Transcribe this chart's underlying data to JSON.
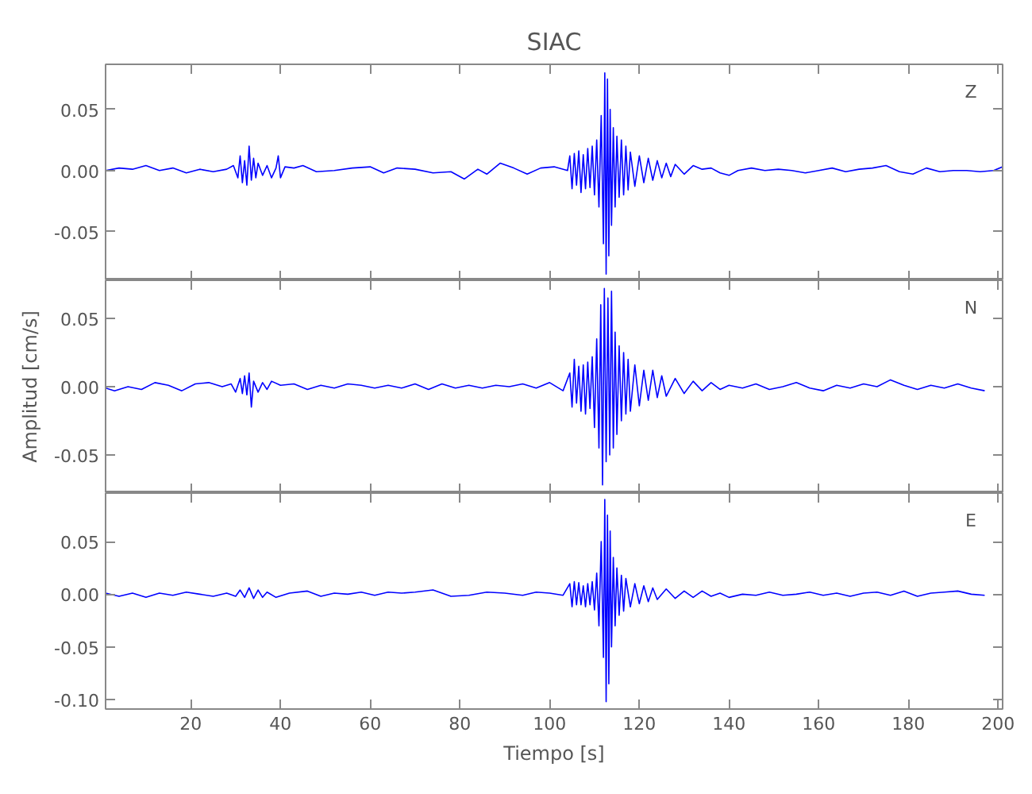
{
  "chart_data": [
    {
      "type": "line",
      "title": "SIAC",
      "annotations": [
        "Z"
      ],
      "xlim": [
        1,
        201
      ],
      "xticks": [
        20,
        40,
        60,
        80,
        100,
        120,
        140,
        160,
        180,
        200
      ],
      "ylim": [
        -0.09,
        0.087
      ],
      "yticks": [
        {
          "value": -0.05,
          "label": "-0.05"
        },
        {
          "value": 0,
          "label": "0.00"
        },
        {
          "value": 0.05,
          "label": "0.05"
        }
      ],
      "tick_labels": "y",
      "series": [
        {
          "color": "#0000ff",
          "x": [
            1,
            4,
            7,
            10,
            13,
            16,
            19,
            22,
            25,
            28,
            29.5,
            30.5,
            31,
            31.5,
            32,
            32.5,
            33,
            33.5,
            34,
            34.5,
            35,
            36,
            37,
            38,
            39,
            39.5,
            40,
            41,
            43,
            45,
            48,
            52,
            56,
            60,
            63,
            66,
            70,
            74,
            78,
            81,
            84,
            86,
            89,
            92,
            95,
            98,
            101,
            104,
            104.5,
            105,
            105.5,
            106,
            106.5,
            107,
            107.5,
            108,
            108.5,
            109,
            109.5,
            110,
            110.5,
            111,
            111.5,
            112,
            112.3,
            112.6,
            112.9,
            113.2,
            113.5,
            113.8,
            114.2,
            114.6,
            115,
            115.5,
            116,
            116.5,
            117,
            117.5,
            118,
            119,
            120,
            121,
            122,
            123,
            124,
            125,
            126,
            127,
            128,
            130,
            132,
            134,
            136,
            138,
            140,
            142,
            145,
            148,
            151,
            154,
            157,
            160,
            163,
            166,
            169,
            172,
            175,
            178,
            181,
            184,
            187,
            190,
            193,
            196,
            199,
            201
          ],
          "values": [
            0.0,
            0.002,
            0.001,
            0.004,
            0.0,
            0.002,
            -0.002,
            0.001,
            -0.001,
            0.001,
            0.004,
            -0.006,
            0.012,
            -0.01,
            0.008,
            -0.012,
            0.02,
            -0.008,
            0.01,
            -0.006,
            0.006,
            -0.004,
            0.004,
            -0.006,
            0.002,
            0.012,
            -0.006,
            0.003,
            0.002,
            0.004,
            -0.001,
            0.0,
            0.002,
            0.003,
            -0.002,
            0.002,
            0.001,
            -0.002,
            -0.001,
            -0.007,
            0.001,
            -0.003,
            0.006,
            0.002,
            -0.003,
            0.002,
            0.003,
            0.0,
            0.012,
            -0.015,
            0.014,
            -0.012,
            0.016,
            -0.018,
            0.013,
            -0.015,
            0.018,
            -0.014,
            0.02,
            -0.02,
            0.025,
            -0.03,
            0.045,
            -0.06,
            0.08,
            -0.085,
            0.075,
            -0.07,
            0.05,
            -0.045,
            0.035,
            -0.03,
            0.028,
            -0.022,
            0.025,
            -0.02,
            0.02,
            -0.016,
            0.015,
            -0.013,
            0.012,
            -0.01,
            0.01,
            -0.008,
            0.008,
            -0.006,
            0.006,
            -0.005,
            0.005,
            -0.003,
            0.004,
            0.001,
            0.002,
            -0.002,
            -0.004,
            0.0,
            0.002,
            0.0,
            0.001,
            0.0,
            -0.002,
            0.0,
            0.002,
            -0.001,
            0.001,
            0.002,
            0.004,
            -0.001,
            -0.003,
            0.002,
            -0.001,
            0.0,
            0.0,
            -0.001,
            0.0,
            0.003
          ]
        }
      ]
    },
    {
      "type": "line",
      "ylabel": "Amplitud [cm/s]",
      "annotations": [
        "N"
      ],
      "xlim": [
        1,
        201
      ],
      "xticks": [
        20,
        40,
        60,
        80,
        100,
        120,
        140,
        160,
        180,
        200
      ],
      "ylim": [
        -0.078,
        0.078
      ],
      "yticks": [
        {
          "value": -0.05,
          "label": "-0.05"
        },
        {
          "value": 0,
          "label": "0.00"
        },
        {
          "value": 0.05,
          "label": "0.05"
        }
      ],
      "tick_labels": "y",
      "series": [
        {
          "color": "#0000ff",
          "x": [
            1,
            3,
            6,
            9,
            12,
            15,
            18,
            21,
            24,
            27,
            29,
            30,
            31,
            31.5,
            32,
            32.5,
            33,
            33.5,
            34,
            35,
            36,
            37,
            38,
            40,
            43,
            46,
            49,
            52,
            55,
            58,
            61,
            64,
            67,
            70,
            73,
            76,
            79,
            82,
            85,
            88,
            91,
            94,
            97,
            100,
            103,
            104.5,
            105,
            105.5,
            106,
            106.5,
            107,
            107.5,
            108,
            108.5,
            109,
            109.5,
            110,
            110.5,
            111,
            111.4,
            111.8,
            112.2,
            112.6,
            113,
            113.4,
            113.8,
            114.2,
            114.6,
            115,
            115.5,
            116,
            116.5,
            117,
            117.5,
            118,
            119,
            120,
            121,
            122,
            123,
            124,
            125,
            126,
            128,
            130,
            132,
            134,
            136,
            138,
            140,
            143,
            146,
            149,
            152,
            155,
            158,
            161,
            164,
            167,
            170,
            173,
            176,
            179,
            182,
            185,
            188,
            191,
            194,
            197
          ],
          "values": [
            -0.001,
            -0.003,
            0.0,
            -0.002,
            0.003,
            0.001,
            -0.003,
            0.002,
            0.003,
            0.0,
            0.002,
            -0.004,
            0.006,
            -0.005,
            0.008,
            -0.006,
            0.01,
            -0.015,
            0.004,
            -0.004,
            0.003,
            -0.002,
            0.004,
            0.001,
            0.002,
            -0.002,
            0.001,
            -0.001,
            0.002,
            0.001,
            -0.001,
            0.001,
            -0.001,
            0.002,
            -0.002,
            0.002,
            -0.001,
            0.001,
            -0.001,
            0.001,
            0.0,
            0.002,
            -0.001,
            0.003,
            -0.003,
            0.01,
            -0.015,
            0.02,
            -0.012,
            0.015,
            -0.018,
            0.016,
            -0.02,
            0.018,
            -0.016,
            0.022,
            -0.03,
            0.035,
            -0.045,
            0.06,
            -0.072,
            0.072,
            -0.055,
            0.065,
            -0.05,
            0.07,
            -0.045,
            0.04,
            -0.035,
            0.03,
            -0.025,
            0.025,
            -0.02,
            0.02,
            -0.018,
            0.016,
            -0.014,
            0.012,
            -0.01,
            0.012,
            -0.008,
            0.008,
            -0.007,
            0.006,
            -0.005,
            0.004,
            -0.003,
            0.003,
            -0.002,
            0.001,
            -0.001,
            0.002,
            -0.002,
            0.0,
            0.003,
            -0.001,
            -0.003,
            0.001,
            -0.001,
            0.002,
            0.0,
            0.005,
            0.001,
            -0.002,
            0.001,
            -0.001,
            0.002,
            -0.001,
            -0.003
          ]
        }
      ]
    },
    {
      "type": "line",
      "xlabel": "Tiempo [s]",
      "annotations": [
        "E"
      ],
      "xlim": [
        1,
        201
      ],
      "xticks": [
        20,
        40,
        60,
        80,
        100,
        120,
        140,
        160,
        180,
        200
      ],
      "ylim": [
        -0.109,
        0.096
      ],
      "yticks": [
        {
          "value": -0.1,
          "label": "-0.10"
        },
        {
          "value": -0.05,
          "label": "-0.05"
        },
        {
          "value": 0,
          "label": "0.00"
        },
        {
          "value": 0.05,
          "label": "0.05"
        }
      ],
      "series": [
        {
          "color": "#0000ff",
          "x": [
            1,
            4,
            7,
            10,
            13,
            16,
            19,
            22,
            25,
            28,
            30,
            31,
            32,
            33,
            34,
            35,
            36,
            37,
            39,
            42,
            46,
            49,
            52,
            55,
            58,
            61,
            64,
            67,
            70,
            74,
            78,
            82,
            86,
            90,
            94,
            97,
            100,
            103,
            104.5,
            105,
            105.5,
            106,
            106.5,
            107,
            107.5,
            108,
            108.5,
            109,
            109.5,
            110,
            110.5,
            111,
            111.5,
            112,
            112.3,
            112.6,
            112.9,
            113.2,
            113.5,
            113.8,
            114.2,
            114.6,
            115,
            115.5,
            116,
            116.5,
            117,
            118,
            119,
            120,
            121,
            122,
            123,
            124,
            126,
            128,
            130,
            132,
            134,
            136,
            138,
            140,
            143,
            146,
            149,
            152,
            155,
            158,
            161,
            164,
            167,
            170,
            173,
            176,
            179,
            182,
            185,
            188,
            191,
            194,
            197
          ],
          "values": [
            0.001,
            -0.002,
            0.001,
            -0.003,
            0.001,
            -0.001,
            0.002,
            0.0,
            -0.002,
            0.001,
            -0.002,
            0.004,
            -0.003,
            0.006,
            -0.004,
            0.004,
            -0.003,
            0.002,
            -0.003,
            0.001,
            0.003,
            -0.002,
            0.001,
            0.0,
            0.002,
            -0.001,
            0.002,
            0.001,
            0.002,
            0.004,
            -0.002,
            -0.001,
            0.002,
            0.001,
            -0.001,
            0.002,
            0.001,
            -0.001,
            0.01,
            -0.012,
            0.012,
            -0.01,
            0.011,
            -0.01,
            0.008,
            -0.012,
            0.01,
            -0.01,
            0.012,
            -0.015,
            0.02,
            -0.03,
            0.05,
            -0.06,
            0.09,
            -0.102,
            0.075,
            -0.085,
            0.06,
            -0.05,
            0.035,
            -0.03,
            0.025,
            -0.02,
            0.018,
            -0.016,
            0.015,
            -0.012,
            0.01,
            -0.009,
            0.008,
            -0.007,
            0.006,
            -0.005,
            0.005,
            -0.004,
            0.003,
            -0.003,
            0.003,
            -0.002,
            0.001,
            -0.003,
            0.0,
            -0.001,
            0.002,
            -0.001,
            0.0,
            0.002,
            -0.001,
            0.001,
            -0.002,
            0.001,
            0.002,
            -0.001,
            0.003,
            -0.002,
            0.001,
            0.002,
            0.003,
            0.0,
            -0.001
          ]
        }
      ]
    }
  ]
}
